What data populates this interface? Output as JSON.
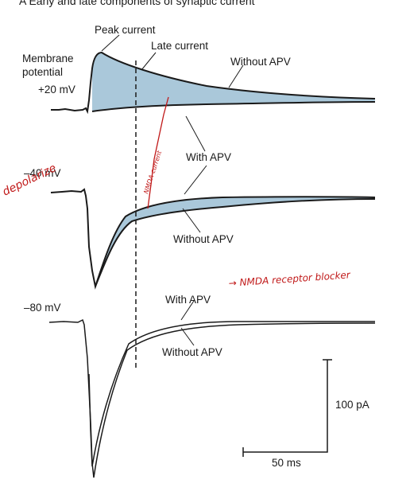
{
  "header": {
    "title": "A  Early and late components of synaptic current"
  },
  "labels": {
    "peak_current": "Peak current",
    "late_current": "Late current",
    "membrane_potential_1": "Membrane",
    "membrane_potential_2": "potential",
    "v_plus20": "+20 mV",
    "v_minus40": "–40 mV",
    "v_minus80": "–80 mV",
    "without_apv": "Without APV",
    "with_apv": "With APV",
    "scale_current": "100 pA",
    "scale_time": "50 ms"
  },
  "handwriting": {
    "depolarize": "depolarize",
    "nmda_current": "NMDA current",
    "nmda_blocker": "→ NMDA receptor blocker"
  },
  "colors": {
    "shading": "#aac8da",
    "trace": "#1a1a1a",
    "ink": "#c01818"
  }
}
